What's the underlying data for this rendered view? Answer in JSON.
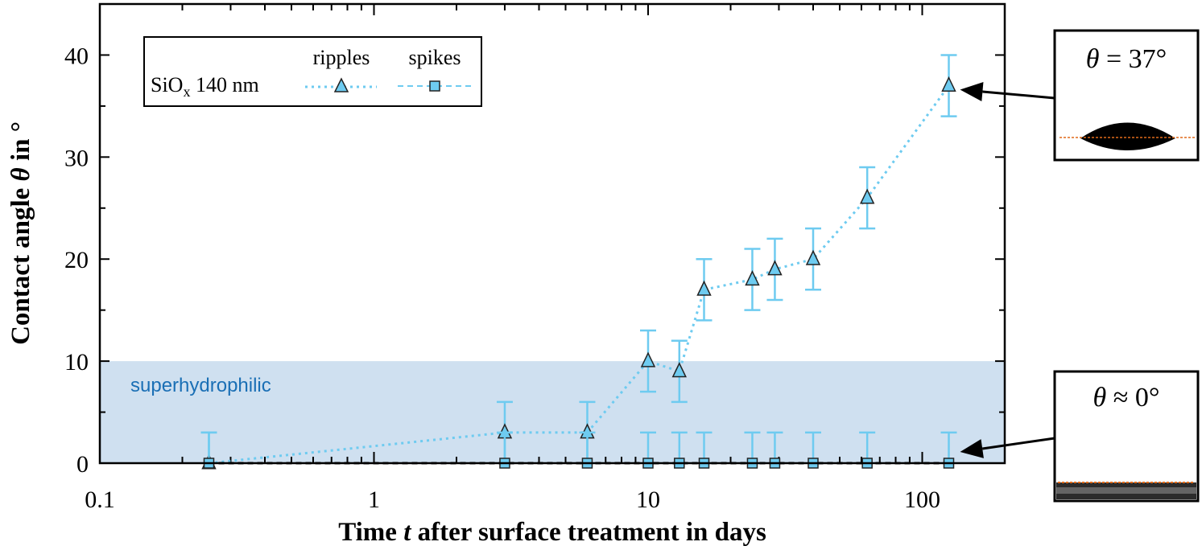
{
  "chart_data": {
    "type": "scatter",
    "x_scale": "log",
    "xlim": [
      0.1,
      200
    ],
    "ylim": [
      0,
      45
    ],
    "xlabel": {
      "prefix": "Time ",
      "var": "t",
      "suffix": " after surface treatment in days"
    },
    "ylabel": {
      "prefix": "Contact angle ",
      "var": "θ",
      "suffix": " in °"
    },
    "x_ticks": [
      0.1,
      1,
      10,
      100
    ],
    "x_tick_labels": [
      "0.1",
      "1",
      "10",
      "100"
    ],
    "y_ticks": [
      0,
      10,
      20,
      30,
      40
    ],
    "y_tick_labels": [
      "0",
      "10",
      "20",
      "30",
      "40"
    ],
    "region": {
      "label": "superhydrophilic",
      "y_from": 0,
      "y_to": 10,
      "color": "#cfe0f0",
      "label_color": "#1a6fb5"
    },
    "legend": {
      "position": "top-left",
      "row_label_main": "SiO",
      "row_label_sub": "x",
      "row_label_rest": " 140 nm",
      "col_ripples": "ripples",
      "col_spikes": "spikes"
    },
    "series": [
      {
        "name": "ripples",
        "marker": "triangle",
        "line": "dotted",
        "color": "#6ecbf0",
        "x": [
          0.25,
          3,
          6,
          10,
          13,
          16,
          24,
          29,
          40,
          63,
          125
        ],
        "y": [
          0,
          3,
          3,
          10,
          9,
          17,
          18,
          19,
          20,
          26,
          37
        ],
        "yerr": [
          3,
          3,
          3,
          3,
          3,
          3,
          3,
          3,
          3,
          3,
          3
        ]
      },
      {
        "name": "spikes",
        "marker": "square",
        "line": "dashed",
        "color": "#6ecbf0",
        "x": [
          0.25,
          3,
          6,
          10,
          13,
          16,
          24,
          29,
          40,
          63,
          125
        ],
        "y": [
          0,
          0,
          0,
          0,
          0,
          0,
          0,
          0,
          0,
          0,
          0
        ],
        "yerr": [
          3,
          3,
          3,
          3,
          3,
          3,
          3,
          3,
          3,
          3,
          3
        ]
      }
    ],
    "annotations": [
      {
        "label_var": "θ",
        "label_rest": " = 37°",
        "points_to_x": 125,
        "points_to_y": 37,
        "image": "droplet"
      },
      {
        "label_var": "θ",
        "label_rest": " ≈ 0°",
        "points_to_x": 125,
        "points_to_y": 0,
        "image": "flat-film"
      }
    ]
  }
}
